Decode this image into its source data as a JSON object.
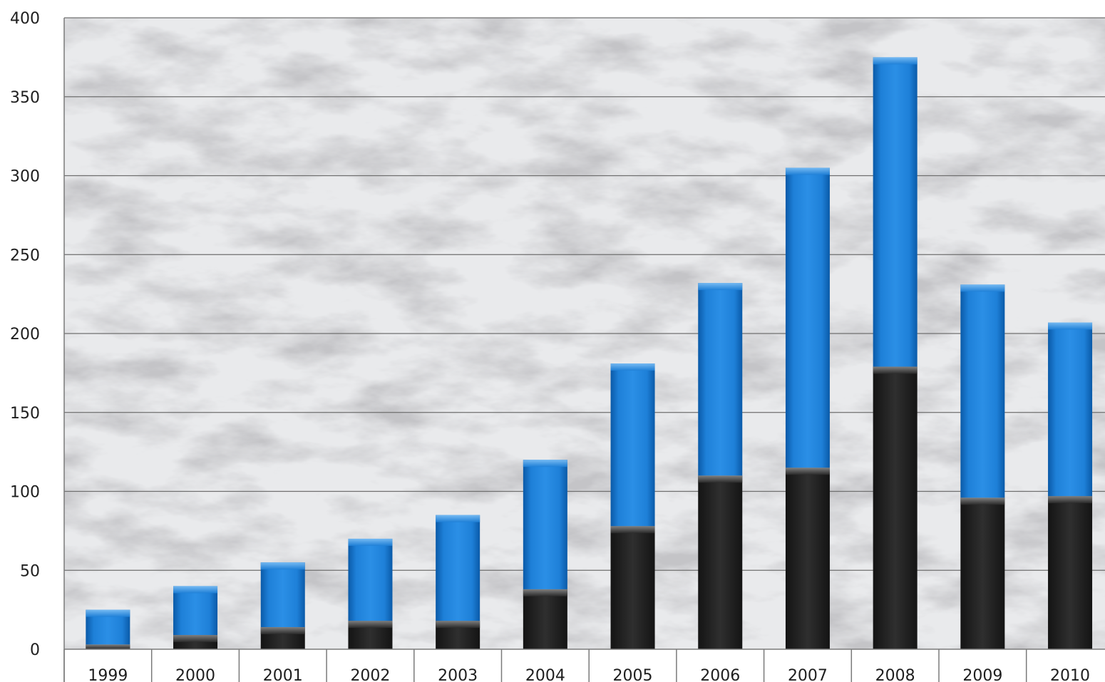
{
  "chart_data": {
    "type": "bar",
    "stacked": true,
    "categories": [
      "1999",
      "2000",
      "2001",
      "2002",
      "2003",
      "2004",
      "2005",
      "2006",
      "2007",
      "2008",
      "2009",
      "2010"
    ],
    "series": [
      {
        "color": "#2a2a2a",
        "values": [
          3,
          9,
          14,
          18,
          18,
          38,
          78,
          110,
          115,
          179,
          96,
          97
        ]
      },
      {
        "color": "#1e7fd6",
        "values": [
          22,
          31,
          41,
          52,
          67,
          82,
          103,
          122,
          190,
          196,
          135,
          110
        ]
      }
    ],
    "totals": [
      25,
      40,
      55,
      70,
      85,
      120,
      181,
      232,
      305,
      375,
      231,
      207
    ],
    "y_ticks": [
      "0",
      "50",
      "100",
      "150",
      "200",
      "250",
      "300",
      "350",
      "400"
    ],
    "ylim": [
      0,
      400
    ],
    "grid": true,
    "legend": "none",
    "title": "",
    "xlabel": "",
    "ylabel": "",
    "background": "marble"
  }
}
